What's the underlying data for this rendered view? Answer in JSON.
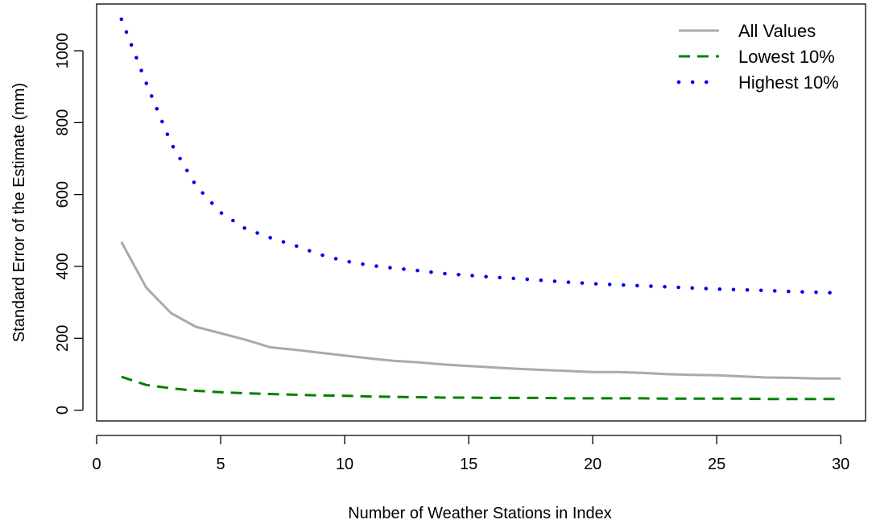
{
  "chart_data": {
    "type": "line",
    "title": "",
    "xlabel": "Number of Weather Stations in Index",
    "ylabel": "Standard Error of the Estimate (mm)",
    "xlim": [
      0,
      31
    ],
    "ylim": [
      -30,
      1130
    ],
    "xticks": [
      0,
      5,
      10,
      15,
      20,
      25,
      30
    ],
    "yticks": [
      0,
      200,
      400,
      600,
      800,
      1000
    ],
    "grid": false,
    "legend_position": "top-right",
    "x": [
      1,
      2,
      3,
      4,
      5,
      6,
      7,
      8,
      9,
      10,
      11,
      12,
      13,
      14,
      15,
      16,
      17,
      18,
      19,
      20,
      21,
      22,
      23,
      24,
      25,
      26,
      27,
      28,
      29,
      30
    ],
    "series": [
      {
        "name": "All Values",
        "color": "#aaaaaa",
        "line_style": "solid",
        "values": [
          468,
          341,
          270,
          232,
          214,
          196,
          175,
          168,
          160,
          152,
          144,
          137,
          133,
          127,
          123,
          119,
          115,
          112,
          109,
          106,
          106,
          104,
          100,
          98,
          97,
          94,
          91,
          90,
          88,
          88
        ]
      },
      {
        "name": "Lowest 10%",
        "color": "#008000",
        "line_style": "dashed",
        "values": [
          93,
          70,
          61,
          54,
          50,
          47,
          45,
          43,
          41,
          40,
          38,
          37,
          36,
          35,
          35,
          34,
          34,
          34,
          33,
          33,
          33,
          33,
          32,
          32,
          32,
          32,
          31,
          31,
          31,
          31
        ]
      },
      {
        "name": "Highest 10%",
        "color": "#0000ee",
        "line_style": "dotted",
        "values": [
          1088,
          910,
          743,
          625,
          550,
          505,
          480,
          458,
          433,
          415,
          403,
          395,
          388,
          380,
          375,
          370,
          366,
          361,
          356,
          352,
          349,
          346,
          343,
          340,
          337,
          335,
          333,
          330,
          328,
          326
        ]
      }
    ]
  }
}
